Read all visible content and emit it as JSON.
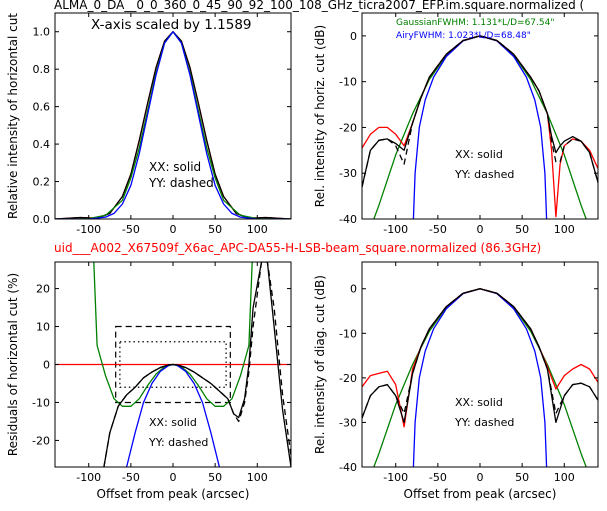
{
  "figure": {
    "title_top": "ALMA_0_DA__0_0_360_0_45_90_92_100_108_GHz_ticra2007_EFP.im.square.normalized (",
    "title_mid": "uid___A002_X67509f_X6ac_APC-DA55-H-LSB-beam_square.normalized (86.3GHz)",
    "title_mid_color": "#ff0000",
    "scale_note": "X-axis scaled by 1.1589",
    "gaussian_note": "GaussianFWHM: 1.131*L/D=67.54\"",
    "gaussian_color": "#008000",
    "airy_note": "AiryFWHM: 1.023*L/D=68.48\"",
    "airy_color": "#0000ff",
    "legend_xx": "XX: solid",
    "legend_yy": "YY: dashed"
  },
  "chart_data": [
    {
      "id": "horiz_linear",
      "type": "line",
      "xlabel": "",
      "ylabel": "Relative intensity of horizontal cut",
      "xlim": [
        -140,
        140
      ],
      "ylim": [
        0,
        1.1
      ],
      "xticks": [
        -100,
        -50,
        0,
        50,
        100
      ],
      "yticks": [
        0,
        0.2,
        0.4,
        0.6,
        0.8,
        1.0
      ],
      "ytick_labels": [
        "0.0",
        "0.2",
        "0.4",
        "0.6",
        "0.8",
        "1.0"
      ],
      "series": [
        {
          "style": "red solid",
          "color": "#ff0000",
          "x": [
            -140,
            -110,
            -90,
            -75,
            -60,
            -50,
            -40,
            -30,
            -20,
            -10,
            0,
            10,
            20,
            30,
            40,
            50,
            60,
            75,
            90,
            110,
            140
          ],
          "y": [
            0.0,
            0.008,
            0.005,
            0.03,
            0.12,
            0.24,
            0.42,
            0.62,
            0.81,
            0.95,
            1.0,
            0.95,
            0.81,
            0.62,
            0.42,
            0.24,
            0.12,
            0.03,
            0.005,
            0.008,
            0.0
          ]
        },
        {
          "style": "black solid",
          "color": "#000000",
          "x": [
            -140,
            -110,
            -90,
            -75,
            -60,
            -50,
            -40,
            -30,
            -20,
            -10,
            0,
            10,
            20,
            30,
            40,
            50,
            60,
            75,
            90,
            110,
            140
          ],
          "y": [
            0.0,
            0.008,
            0.004,
            0.03,
            0.12,
            0.24,
            0.42,
            0.62,
            0.81,
            0.95,
            1.0,
            0.95,
            0.81,
            0.62,
            0.42,
            0.24,
            0.12,
            0.03,
            0.004,
            0.008,
            0.0
          ]
        },
        {
          "style": "green solid",
          "color": "#008000",
          "x": [
            -140,
            -120,
            -100,
            -80,
            -60,
            -50,
            -40,
            -30,
            -20,
            -10,
            0,
            10,
            20,
            30,
            40,
            50,
            60,
            80,
            100,
            120,
            140
          ],
          "y": [
            0.0,
            0.0,
            0.002,
            0.02,
            0.1,
            0.22,
            0.38,
            0.58,
            0.78,
            0.94,
            1.0,
            0.94,
            0.78,
            0.58,
            0.38,
            0.22,
            0.1,
            0.02,
            0.002,
            0.0,
            0.0
          ]
        },
        {
          "style": "blue solid",
          "color": "#0000ff",
          "x": [
            -140,
            -100,
            -80,
            -70,
            -60,
            -50,
            -40,
            -30,
            -20,
            -10,
            0,
            10,
            20,
            30,
            40,
            50,
            60,
            70,
            80,
            100,
            140
          ],
          "y": [
            0.0,
            0.0,
            0.01,
            0.03,
            0.08,
            0.18,
            0.35,
            0.56,
            0.77,
            0.94,
            1.0,
            0.94,
            0.77,
            0.56,
            0.35,
            0.18,
            0.08,
            0.03,
            0.01,
            0.0,
            0.0
          ]
        }
      ]
    },
    {
      "id": "horiz_db",
      "type": "line",
      "xlabel": "",
      "ylabel": "Rel. intensity of horiz. cut (dB)",
      "xlim": [
        -140,
        140
      ],
      "ylim": [
        -40,
        5
      ],
      "xticks": [
        -100,
        -50,
        0,
        50,
        100
      ],
      "yticks": [
        -40,
        -30,
        -20,
        -10,
        0
      ],
      "series": [
        {
          "style": "green solid",
          "color": "#008000",
          "x": [
            -140,
            -120,
            -100,
            -80,
            -60,
            -40,
            -20,
            0,
            20,
            40,
            60,
            80,
            100,
            120,
            140
          ],
          "y": [
            -47,
            -37,
            -26,
            -17,
            -9.5,
            -4.2,
            -1.05,
            0,
            -1.05,
            -4.2,
            -9.5,
            -17,
            -26,
            -37,
            -47
          ]
        },
        {
          "style": "blue solid",
          "color": "#0000ff",
          "x": [
            -79,
            -77,
            -72,
            -65,
            -55,
            -40,
            -20,
            0,
            20,
            40,
            55,
            65,
            72,
            77,
            79
          ],
          "y": [
            -40,
            -30,
            -20,
            -14,
            -9,
            -4.5,
            -1.1,
            0,
            -1.1,
            -4.5,
            -9,
            -14,
            -20,
            -30,
            -40
          ]
        },
        {
          "style": "red solid",
          "color": "#ff0000",
          "x": [
            -140,
            -130,
            -120,
            -110,
            -100,
            -90,
            -80,
            -70,
            -60,
            -40,
            -20,
            0,
            20,
            40,
            60,
            70,
            80,
            85,
            90,
            95,
            100,
            110,
            120,
            130,
            140
          ],
          "y": [
            -24.5,
            -21.5,
            -20,
            -20,
            -21.5,
            -24,
            -19,
            -13.5,
            -9,
            -4,
            -1,
            0,
            -1,
            -4,
            -9,
            -12,
            -17,
            -25,
            -39.5,
            -28,
            -24,
            -22.5,
            -23,
            -25,
            -29
          ]
        },
        {
          "style": "black solid",
          "color": "#000000",
          "x": [
            -140,
            -130,
            -120,
            -110,
            -100,
            -90,
            -80,
            -70,
            -60,
            -40,
            -20,
            0,
            20,
            40,
            60,
            70,
            80,
            85,
            90,
            95,
            100,
            110,
            120,
            130,
            140
          ],
          "y": [
            -33,
            -25,
            -22.8,
            -22.5,
            -23.5,
            -25,
            -19,
            -13.5,
            -9,
            -4,
            -1,
            0,
            -1,
            -4,
            -9,
            -12,
            -17,
            -22,
            -25.5,
            -24,
            -23,
            -22,
            -23,
            -25.5,
            -32
          ]
        },
        {
          "style": "black dashed",
          "color": "#000000",
          "x": [
            -140,
            -130,
            -120,
            -110,
            -100,
            -90,
            -80,
            -70,
            -60,
            -40,
            -20,
            0,
            20,
            40,
            60,
            70,
            80,
            85,
            90,
            95,
            100,
            110,
            120,
            130,
            140
          ],
          "y": [
            -33,
            -25,
            -22.8,
            -22.5,
            -24,
            -28,
            -19,
            -13.5,
            -9,
            -4,
            -1,
            0,
            -1,
            -4,
            -9,
            -12,
            -17,
            -23,
            -27.5,
            -27.5,
            -24,
            -22.5,
            -23,
            -25.5,
            -32
          ]
        }
      ]
    },
    {
      "id": "horiz_residuals",
      "type": "line",
      "xlabel": "Offset from peak (arcsec)",
      "ylabel": "Residuals of horizontal cut (%)",
      "xlim": [
        -140,
        140
      ],
      "ylim": [
        -27,
        27
      ],
      "xticks": [
        -100,
        -50,
        0,
        50,
        100
      ],
      "yticks": [
        -20,
        -10,
        0,
        10,
        20
      ],
      "series": [
        {
          "style": "red solid",
          "color": "#ff0000",
          "x": [
            -140,
            140
          ],
          "y": [
            0,
            0
          ]
        },
        {
          "style": "green solid",
          "color": "#008000",
          "x": [
            -94,
            -90,
            -80,
            -70,
            -60,
            -50,
            -40,
            -30,
            -20,
            -10,
            0,
            10,
            20,
            30,
            40,
            50,
            60,
            70,
            80,
            90,
            94
          ],
          "y": [
            27,
            5,
            -3,
            -9,
            -11,
            -11,
            -9,
            -5.5,
            -2.5,
            -0.6,
            0,
            -0.6,
            -2.5,
            -5.5,
            -9,
            -11,
            -11,
            -9,
            -3,
            5,
            27
          ]
        },
        {
          "style": "blue solid",
          "color": "#0000ff",
          "x": [
            -55,
            -45,
            -35,
            -25,
            -15,
            -5,
            0,
            5,
            15,
            25,
            35,
            45,
            55
          ],
          "y": [
            -27,
            -18,
            -10,
            -5,
            -1.8,
            -0.2,
            0,
            -0.2,
            -1.8,
            -5,
            -10,
            -18,
            -27
          ]
        },
        {
          "style": "black solid",
          "color": "#000000",
          "x": [
            -82,
            -75,
            -65,
            -55,
            -45,
            -35,
            -25,
            -15,
            -5,
            0,
            5,
            15,
            25,
            35,
            45,
            55,
            65,
            72,
            78,
            85,
            90,
            95,
            105,
            112,
            120,
            130,
            140
          ],
          "y": [
            -27,
            -18,
            -11,
            -8,
            -6,
            -3.5,
            -2,
            -0.8,
            -0.1,
            0,
            -0.1,
            -0.8,
            -2,
            -3.5,
            -5,
            -7,
            -9,
            -13,
            -14,
            -9,
            0,
            15,
            27,
            27,
            10,
            -12,
            -27
          ]
        },
        {
          "style": "black dashed",
          "color": "#000000",
          "x": [
            -82,
            -75,
            -65,
            -55,
            -45,
            -35,
            -25,
            -15,
            -5,
            0,
            5,
            15,
            25,
            35,
            45,
            55,
            65,
            72,
            78,
            85,
            90,
            95,
            105,
            112,
            120,
            130,
            140
          ],
          "y": [
            -27,
            -18,
            -11,
            -8,
            -6,
            -3.5,
            -2,
            -0.8,
            -0.1,
            0,
            -0.1,
            -0.8,
            -2,
            -3.5,
            -5,
            -7,
            -9,
            -13,
            -15,
            -10,
            -2,
            10,
            27,
            27,
            15,
            -8,
            -24
          ]
        }
      ],
      "boxes": [
        {
          "style": "dashed",
          "x": [
            -68,
            68
          ],
          "y": [
            -10,
            10
          ]
        },
        {
          "style": "dotted",
          "x": [
            -63,
            63
          ],
          "y": [
            -6,
            6
          ]
        }
      ]
    },
    {
      "id": "diag_db",
      "type": "line",
      "xlabel": "Offset from peak (arcsec)",
      "ylabel": "Rel. intensity of diag. cut (dB)",
      "xlim": [
        -140,
        140
      ],
      "ylim": [
        -40,
        6
      ],
      "xticks": [
        -100,
        -50,
        0,
        50,
        100
      ],
      "yticks": [
        -40,
        -30,
        -20,
        -10,
        0
      ],
      "series": [
        {
          "style": "green solid",
          "color": "#008000",
          "x": [
            -140,
            -120,
            -100,
            -80,
            -60,
            -40,
            -20,
            0,
            20,
            40,
            60,
            80,
            100,
            120,
            140
          ],
          "y": [
            -47,
            -37,
            -26,
            -17,
            -9.5,
            -4.2,
            -1.05,
            0,
            -1.05,
            -4.2,
            -9.5,
            -17,
            -26,
            -37,
            -47
          ]
        },
        {
          "style": "blue solid",
          "color": "#0000ff",
          "x": [
            -79,
            -77,
            -72,
            -65,
            -55,
            -40,
            -20,
            0,
            20,
            40,
            55,
            65,
            72,
            77,
            79
          ],
          "y": [
            -40,
            -30,
            -20,
            -14,
            -9,
            -4.5,
            -1.1,
            0,
            -1.1,
            -4.5,
            -9,
            -14,
            -20,
            -30,
            -40
          ]
        },
        {
          "style": "red solid",
          "color": "#ff0000",
          "x": [
            -140,
            -130,
            -120,
            -110,
            -100,
            -90,
            -80,
            -70,
            -60,
            -40,
            -20,
            0,
            20,
            40,
            60,
            70,
            80,
            90,
            100,
            110,
            120,
            130,
            140
          ],
          "y": [
            -22,
            -19.5,
            -19,
            -18.5,
            -21.5,
            -31,
            -18,
            -13,
            -9,
            -4,
            -1,
            0,
            -1,
            -4,
            -9,
            -13,
            -17.5,
            -22.5,
            -19.5,
            -18,
            -17,
            -18,
            -21
          ]
        },
        {
          "style": "black solid",
          "color": "#000000",
          "x": [
            -140,
            -130,
            -120,
            -110,
            -100,
            -90,
            -80,
            -70,
            -60,
            -40,
            -20,
            0,
            20,
            40,
            60,
            70,
            80,
            90,
            100,
            110,
            120,
            130,
            140
          ],
          "y": [
            -29,
            -24,
            -22,
            -21.5,
            -24,
            -30,
            -19,
            -13,
            -9,
            -4,
            -1,
            0,
            -1,
            -4,
            -9,
            -13,
            -18,
            -30,
            -24,
            -21.5,
            -21.2,
            -22,
            -25
          ]
        },
        {
          "style": "black dashed",
          "color": "#000000",
          "x": [
            -140,
            -130,
            -120,
            -110,
            -100,
            -90,
            -80,
            -70,
            -60,
            -40,
            -20,
            0,
            20,
            40,
            60,
            70,
            80,
            90,
            100,
            110,
            120,
            130,
            140
          ],
          "y": [
            -29,
            -24,
            -22,
            -21.5,
            -24,
            -28,
            -19,
            -13,
            -9,
            -4,
            -1,
            0,
            -1,
            -4,
            -9,
            -13,
            -18,
            -28,
            -24,
            -21.5,
            -21.2,
            -22,
            -25
          ]
        }
      ]
    }
  ]
}
